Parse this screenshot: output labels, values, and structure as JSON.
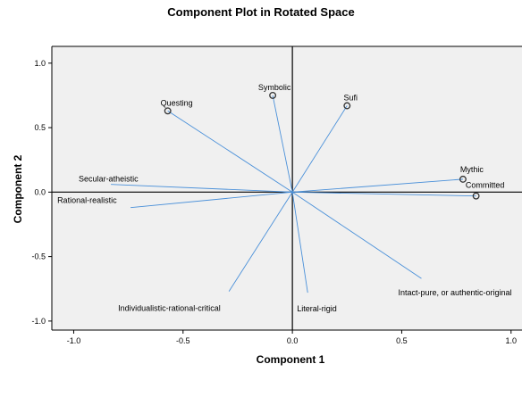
{
  "chart_data": {
    "type": "scatter",
    "title": "Component Plot in Rotated Space",
    "xlabel": "Component 1",
    "ylabel": "Component 2",
    "xlim": [
      -1.1,
      1.05
    ],
    "ylim": [
      -1.07,
      1.13
    ],
    "xticks": [
      "-1.0",
      "-0.5",
      "0.0",
      "0.5",
      "1.0"
    ],
    "yticks": [
      "1.0",
      "0.5",
      "0.0",
      "-0.5",
      "-1.0"
    ],
    "grid": false,
    "marker_color": "#333333",
    "vector_color": "#4a90d9",
    "plot_background": "#f0f0f0",
    "points": [
      {
        "label": "Symbolic",
        "x": -0.09,
        "y": 0.75,
        "marker": true
      },
      {
        "label": "Sufi",
        "x": 0.25,
        "y": 0.67,
        "marker": true
      },
      {
        "label": "Questing",
        "x": -0.57,
        "y": 0.63,
        "marker": true
      },
      {
        "label": "Mythic",
        "x": 0.78,
        "y": 0.1,
        "marker": true
      },
      {
        "label": "Committed",
        "x": 0.84,
        "y": -0.03,
        "marker": true
      },
      {
        "label": "Secular-atheistic",
        "x": -0.83,
        "y": 0.06,
        "marker": false
      },
      {
        "label": "Rational-realistic",
        "x": -0.74,
        "y": -0.12,
        "marker": false
      },
      {
        "label": "Individualistic-rational-critical",
        "x": -0.29,
        "y": -0.77,
        "marker": false
      },
      {
        "label": "Literal-rigid",
        "x": 0.07,
        "y": -0.78,
        "marker": false
      },
      {
        "label": "Intact-pure, or authentic-original",
        "x": 0.59,
        "y": -0.67,
        "marker": false
      }
    ]
  }
}
